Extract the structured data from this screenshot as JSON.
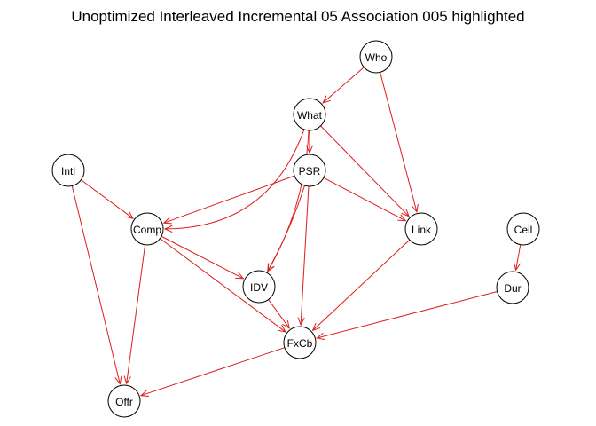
{
  "title": "Unoptimized Interleaved Incremental 05 Association 005 highlighted",
  "colors": {
    "edge": "#dd1c1c",
    "node_fill": "#ffffff",
    "node_stroke": "#000000"
  },
  "nodes": [
    {
      "id": "Who",
      "label": "Who"
    },
    {
      "id": "What",
      "label": "What"
    },
    {
      "id": "Intl",
      "label": "Intl"
    },
    {
      "id": "PSR",
      "label": "PSR"
    },
    {
      "id": "Comp",
      "label": "Comp"
    },
    {
      "id": "Link",
      "label": "Link"
    },
    {
      "id": "Ceil",
      "label": "Ceil"
    },
    {
      "id": "IDV",
      "label": "IDV"
    },
    {
      "id": "Dur",
      "label": "Dur"
    },
    {
      "id": "FxCb",
      "label": "FxCb"
    },
    {
      "id": "Offr",
      "label": "Offr"
    }
  ],
  "edges": [
    {
      "from": "Who",
      "to": "What"
    },
    {
      "from": "Who",
      "to": "Link"
    },
    {
      "from": "What",
      "to": "PSR"
    },
    {
      "from": "What",
      "to": "Comp"
    },
    {
      "from": "What",
      "to": "IDV"
    },
    {
      "from": "What",
      "to": "Link"
    },
    {
      "from": "Intl",
      "to": "Comp"
    },
    {
      "from": "Intl",
      "to": "Offr"
    },
    {
      "from": "PSR",
      "to": "Comp"
    },
    {
      "from": "PSR",
      "to": "Link"
    },
    {
      "from": "PSR",
      "to": "IDV"
    },
    {
      "from": "PSR",
      "to": "FxCb"
    },
    {
      "from": "Comp",
      "to": "IDV"
    },
    {
      "from": "Comp",
      "to": "FxCb"
    },
    {
      "from": "Comp",
      "to": "Offr"
    },
    {
      "from": "Link",
      "to": "FxCb"
    },
    {
      "from": "Ceil",
      "to": "Dur"
    },
    {
      "from": "IDV",
      "to": "FxCb"
    },
    {
      "from": "Dur",
      "to": "FxCb"
    },
    {
      "from": "FxCb",
      "to": "Offr"
    }
  ]
}
